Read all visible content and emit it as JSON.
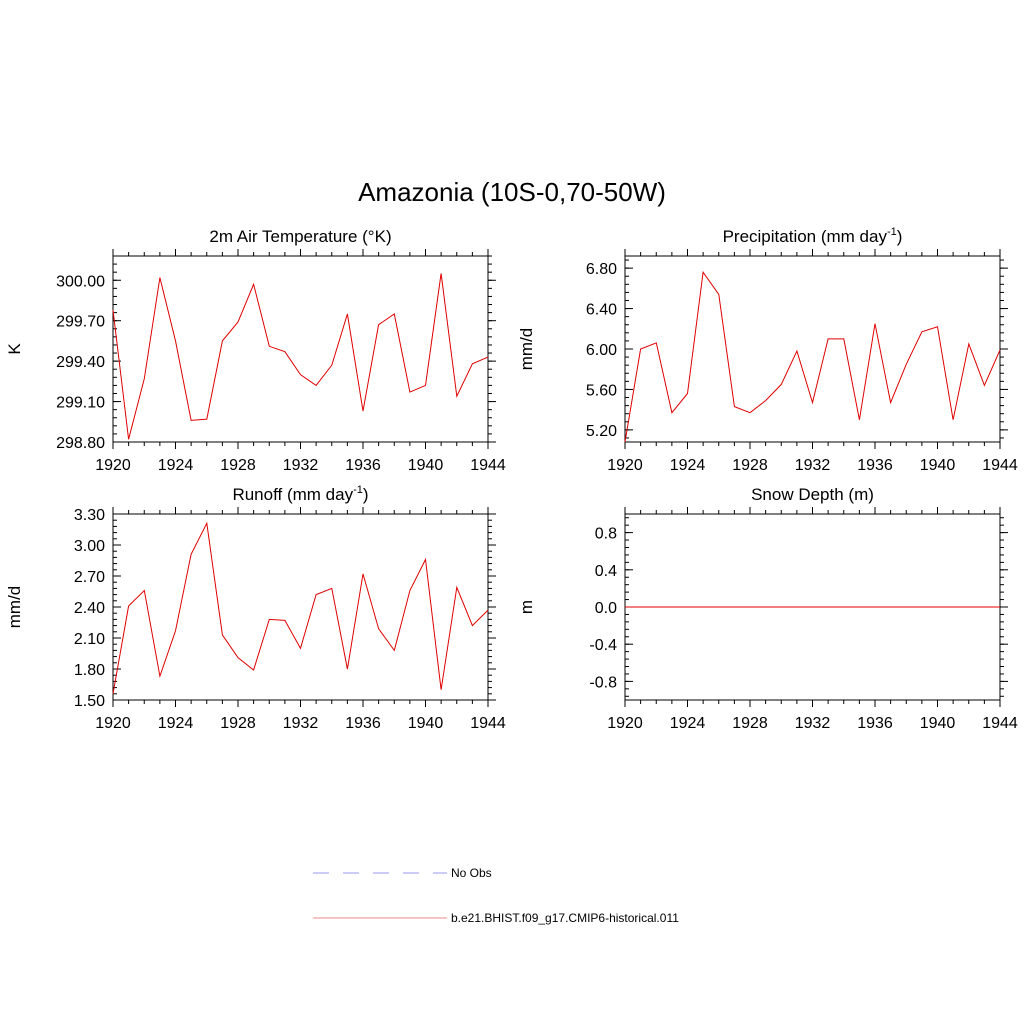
{
  "figure": {
    "title": "Amazonia (10S-0,70-50W)"
  },
  "chart_data": [
    {
      "type": "line",
      "title": "2m Air Temperature (°K)",
      "ylabel": "K",
      "xlabel": "",
      "xlim": [
        1920,
        1944
      ],
      "ylim": [
        298.8,
        300.18
      ],
      "xticks": [
        1920,
        1924,
        1928,
        1932,
        1936,
        1940,
        1944
      ],
      "yticks": [
        298.8,
        299.1,
        299.4,
        299.7,
        300.0
      ],
      "ytick_labels": [
        "298.80",
        "299.10",
        "299.40",
        "299.70",
        "300.00"
      ],
      "yminor_step": 0.06,
      "series": [
        {
          "name": "b.e21.BHIST.f09_g17.CMIP6-historical.011",
          "color": "#e00000",
          "x": [
            1920,
            1921,
            1922,
            1923,
            1924,
            1925,
            1926,
            1927,
            1928,
            1929,
            1930,
            1931,
            1932,
            1933,
            1934,
            1935,
            1936,
            1937,
            1938,
            1939,
            1940,
            1941,
            1942,
            1943,
            1944
          ],
          "values": [
            299.78,
            298.82,
            299.27,
            300.02,
            299.55,
            298.96,
            298.97,
            299.55,
            299.69,
            299.97,
            299.51,
            299.47,
            299.3,
            299.22,
            299.37,
            299.75,
            299.03,
            299.67,
            299.75,
            299.17,
            299.22,
            300.05,
            299.14,
            299.38,
            299.43
          ]
        }
      ]
    },
    {
      "type": "line",
      "title": "Precipitation (mm day",
      "title_sup": "-1",
      "title_end": ")",
      "ylabel": "mm/d",
      "xlabel": "",
      "xlim": [
        1920,
        1944
      ],
      "ylim": [
        5.08,
        6.92
      ],
      "xticks": [
        1920,
        1924,
        1928,
        1932,
        1936,
        1940,
        1944
      ],
      "yticks": [
        5.2,
        5.6,
        6.0,
        6.4,
        6.8
      ],
      "ytick_labels": [
        "5.20",
        "5.60",
        "6.00",
        "6.40",
        "6.80"
      ],
      "yminor_step": 0.08,
      "series": [
        {
          "name": "b.e21.BHIST.f09_g17.CMIP6-historical.011",
          "color": "#e00000",
          "x": [
            1920,
            1921,
            1922,
            1923,
            1924,
            1925,
            1926,
            1927,
            1928,
            1929,
            1930,
            1931,
            1932,
            1933,
            1934,
            1935,
            1936,
            1937,
            1938,
            1939,
            1940,
            1941,
            1942,
            1943,
            1944
          ],
          "values": [
            5.08,
            6.0,
            6.06,
            5.37,
            5.56,
            6.76,
            6.54,
            5.43,
            5.37,
            5.49,
            5.65,
            5.98,
            5.47,
            6.1,
            6.1,
            5.3,
            6.25,
            5.47,
            5.85,
            6.17,
            6.22,
            5.3,
            6.05,
            5.64,
            5.99
          ]
        }
      ]
    },
    {
      "type": "line",
      "title": "Runoff (mm day",
      "title_sup": "-1",
      "title_end": ")",
      "ylabel": "mm/d",
      "xlabel": "",
      "xlim": [
        1920,
        1944
      ],
      "ylim": [
        1.5,
        3.3
      ],
      "xticks": [
        1920,
        1924,
        1928,
        1932,
        1936,
        1940,
        1944
      ],
      "yticks": [
        1.5,
        1.8,
        2.1,
        2.4,
        2.7,
        3.0,
        3.3
      ],
      "ytick_labels": [
        "1.50",
        "1.80",
        "2.10",
        "2.40",
        "2.70",
        "3.00",
        "3.30"
      ],
      "yminor_step": 0.06,
      "series": [
        {
          "name": "b.e21.BHIST.f09_g17.CMIP6-historical.011",
          "color": "#e00000",
          "x": [
            1920,
            1921,
            1922,
            1923,
            1924,
            1925,
            1926,
            1927,
            1928,
            1929,
            1930,
            1931,
            1932,
            1933,
            1934,
            1935,
            1936,
            1937,
            1938,
            1939,
            1940,
            1941,
            1942,
            1943,
            1944
          ],
          "values": [
            1.56,
            2.41,
            2.56,
            1.73,
            2.17,
            2.91,
            3.21,
            2.13,
            1.91,
            1.79,
            2.28,
            2.27,
            2.0,
            2.52,
            2.58,
            1.8,
            2.72,
            2.19,
            1.98,
            2.56,
            2.86,
            1.6,
            2.59,
            2.22,
            2.37
          ]
        }
      ]
    },
    {
      "type": "line",
      "title": "Snow Depth (m)",
      "ylabel": "m",
      "xlabel": "",
      "xlim": [
        1920,
        1944
      ],
      "ylim": [
        -1.0,
        1.0
      ],
      "xticks": [
        1920,
        1924,
        1928,
        1932,
        1936,
        1940,
        1944
      ],
      "yticks": [
        -0.8,
        -0.4,
        0.0,
        0.4,
        0.8
      ],
      "ytick_labels": [
        "-0.8",
        "-0.4",
        "0.0",
        "0.4",
        "0.8"
      ],
      "yminor_step": 0.08,
      "series": [
        {
          "name": "b.e21.BHIST.f09_g17.CMIP6-historical.011",
          "color": "#e00000",
          "x": [
            1920,
            1921,
            1922,
            1923,
            1924,
            1925,
            1926,
            1927,
            1928,
            1929,
            1930,
            1931,
            1932,
            1933,
            1934,
            1935,
            1936,
            1937,
            1938,
            1939,
            1940,
            1941,
            1942,
            1943,
            1944
          ],
          "values": [
            0,
            0,
            0,
            0,
            0,
            0,
            0,
            0,
            0,
            0,
            0,
            0,
            0,
            0,
            0,
            0,
            0,
            0,
            0,
            0,
            0,
            0,
            0,
            0,
            0
          ]
        }
      ]
    }
  ],
  "legend": {
    "entries": [
      {
        "label": "No Obs",
        "color": "#9999ee",
        "style": "dashed"
      },
      {
        "label": "b.e21.BHIST.f09_g17.CMIP6-historical.011",
        "color": "#ee8888",
        "style": "solid"
      }
    ]
  }
}
